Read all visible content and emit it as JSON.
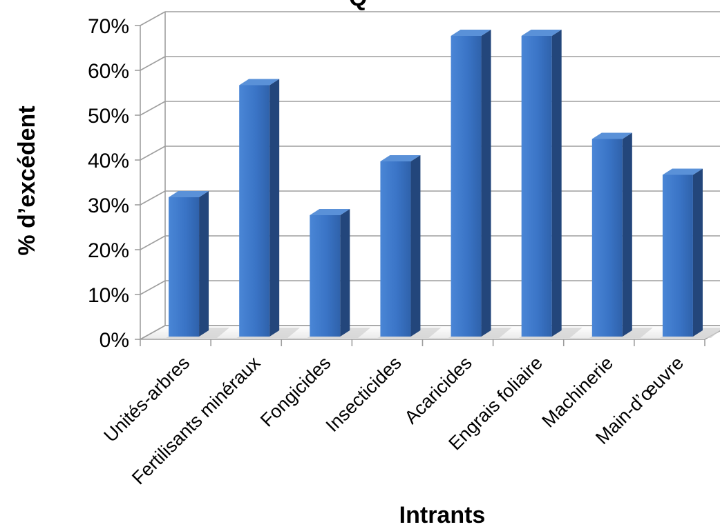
{
  "chart_data": {
    "type": "bar",
    "style": "3d-column",
    "title": "",
    "xlabel": "Intrants",
    "ylabel": "% d’excédent",
    "categories": [
      "Unités-arbres",
      "Fertilisants minéraux",
      "Fongicides",
      "Insecticides",
      "Acaricides",
      "Engrais foliaire",
      "Machinerie",
      "Main-d’œuvre"
    ],
    "values": [
      32,
      57,
      28,
      40,
      68,
      68,
      45,
      37
    ],
    "value_format": "percent",
    "ylim": [
      0,
      70
    ],
    "yticks": [
      "0%",
      "10%",
      "20%",
      "30%",
      "40%",
      "50%",
      "60%",
      "70%"
    ],
    "grid": true,
    "legend": "none",
    "colors": {
      "bar_front": "#3f79c9",
      "bar_side": "#23467b",
      "bar_top": "#5a91d8",
      "grid": "#9e9e9e"
    }
  },
  "title_fragment": "Q"
}
